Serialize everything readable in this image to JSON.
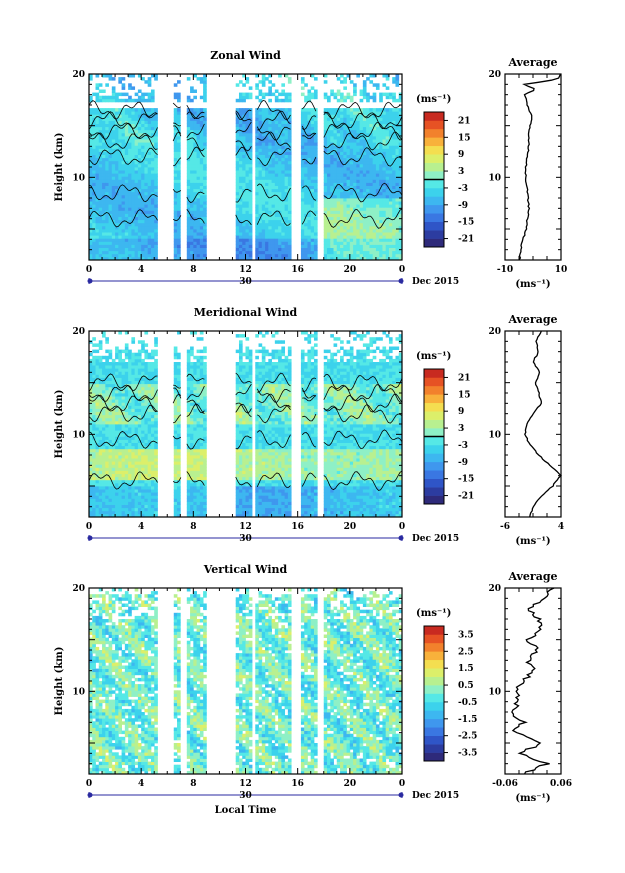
{
  "chart_data": [
    {
      "type": "heatmap",
      "title": "Zonal Wind",
      "ylabel": "Height (km)",
      "y_ticks": [
        "20",
        "10"
      ],
      "x_ticks": [
        "0",
        "4",
        "8",
        "12",
        "16",
        "20",
        "0"
      ],
      "date_day": "30",
      "date_label": "Dec 2015",
      "xlim_hours": [
        0,
        24
      ],
      "ylim_km": [
        2,
        20
      ],
      "colorbar": {
        "unit": "(ms⁻¹)",
        "ticks": [
          "21",
          "15",
          "9",
          "3",
          "-3",
          "-9",
          "-15",
          "-21"
        ],
        "range": [
          -24,
          24
        ],
        "contour_level": 0
      },
      "profile": {
        "title": "Average",
        "xlabel": "(ms⁻¹)",
        "x_ticks": [
          "-10",
          "10"
        ],
        "y_ticks": [
          "20",
          "10"
        ],
        "xlim": [
          -10,
          10
        ],
        "ylim_km": [
          2,
          20
        ],
        "heights_km": [
          2,
          3,
          4,
          5,
          6,
          7,
          8,
          9,
          10,
          11,
          12,
          13,
          14,
          15,
          16,
          17,
          18,
          18.5,
          19,
          19.5,
          20
        ],
        "values": [
          -4.8,
          -4.5,
          -3.5,
          -2.5,
          -2,
          -1.5,
          -1.8,
          -2.2,
          -2.6,
          -2.5,
          -2,
          -1.5,
          -1.5,
          -1,
          -0.5,
          -2,
          -3,
          1,
          -3,
          9,
          10
        ]
      }
    },
    {
      "type": "heatmap",
      "title": "Meridional Wind",
      "ylabel": "Height (km)",
      "y_ticks": [
        "20",
        "10"
      ],
      "x_ticks": [
        "0",
        "4",
        "8",
        "12",
        "16",
        "20",
        "0"
      ],
      "date_day": "30",
      "date_label": "Dec 2015",
      "xlim_hours": [
        0,
        24
      ],
      "ylim_km": [
        2,
        20
      ],
      "colorbar": {
        "unit": "(ms⁻¹)",
        "ticks": [
          "21",
          "15",
          "9",
          "3",
          "-3",
          "-9",
          "-15",
          "-21"
        ],
        "range": [
          -24,
          24
        ],
        "contour_level": 0
      },
      "profile": {
        "title": "Average",
        "xlabel": "(ms⁻¹)",
        "x_ticks": [
          "-6",
          "4"
        ],
        "y_ticks": [
          "20",
          "10"
        ],
        "xlim": [
          -6,
          4
        ],
        "ylim_km": [
          2,
          20
        ],
        "heights_km": [
          2,
          3,
          4,
          5,
          6,
          7,
          8,
          9,
          10,
          11,
          12,
          13,
          14,
          15,
          16,
          17,
          18,
          19,
          20
        ],
        "values": [
          -1.5,
          -1,
          0.5,
          2.5,
          4,
          2,
          0,
          -1.5,
          -2.5,
          -2,
          -1,
          0.5,
          0,
          -0.5,
          0.2,
          -1,
          0,
          -0.5,
          0.5
        ]
      }
    },
    {
      "type": "heatmap",
      "title": "Vertical Wind",
      "ylabel": "Height (km)",
      "xlabel": "Local Time",
      "y_ticks": [
        "20",
        "10"
      ],
      "x_ticks": [
        "0",
        "4",
        "8",
        "12",
        "16",
        "20",
        "0"
      ],
      "date_day": "30",
      "date_label": "Dec 2015",
      "xlim_hours": [
        0,
        24
      ],
      "ylim_km": [
        2,
        20
      ],
      "colorbar": {
        "unit": "(ms⁻¹)",
        "ticks": [
          "3.5",
          "2.5",
          "1.5",
          "0.5",
          "-0.5",
          "-1.5",
          "-2.5",
          "-3.5"
        ],
        "range": [
          -4,
          4
        ]
      },
      "profile": {
        "title": "Average",
        "xlabel": "(ms⁻¹)",
        "x_ticks": [
          "-0.06",
          "0.06"
        ],
        "y_ticks": [
          "20",
          "10"
        ],
        "xlim": [
          -0.06,
          0.06
        ],
        "ylim_km": [
          2,
          20
        ],
        "heights_km": [
          2,
          3,
          4,
          5,
          6,
          7,
          8,
          9,
          10,
          11,
          12,
          13,
          14,
          15,
          16,
          17,
          18,
          19,
          20
        ],
        "values": [
          -0.02,
          0.03,
          -0.03,
          0.02,
          -0.04,
          -0.02,
          -0.05,
          -0.03,
          -0.04,
          -0.02,
          0,
          -0.01,
          0.01,
          -0.01,
          0.02,
          0.01,
          -0.01,
          0.02,
          0.04
        ]
      }
    }
  ]
}
